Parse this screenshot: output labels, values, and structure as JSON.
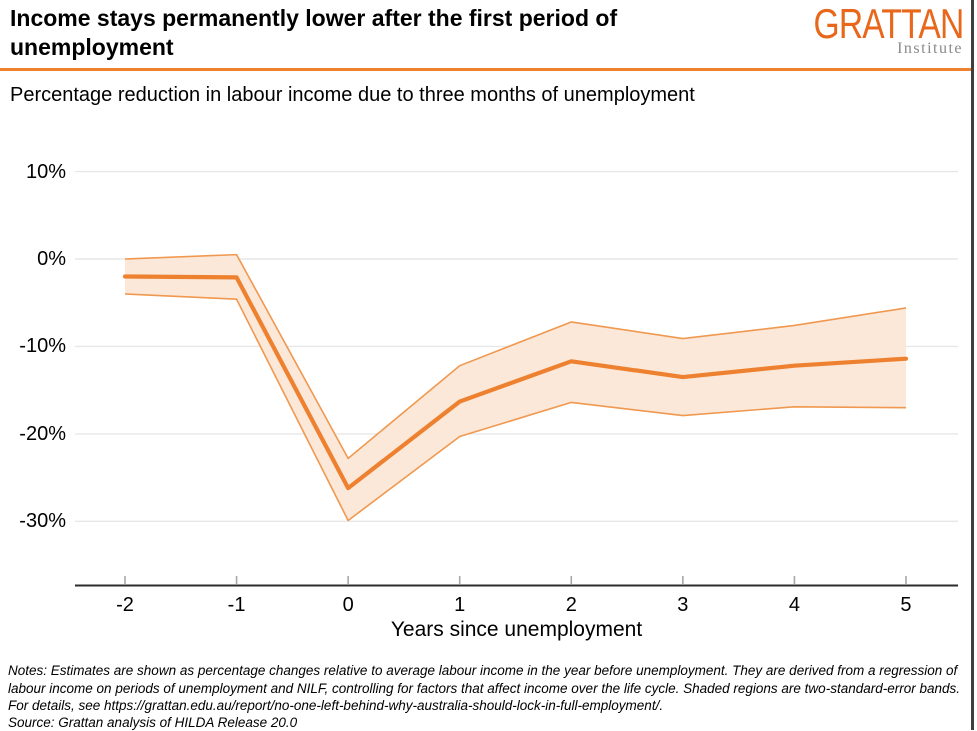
{
  "header": {
    "title": "Income stays permanently lower after the first period of unemployment",
    "logo_word": "GRATTAN",
    "logo_sub": "Institute"
  },
  "subtitle": "Percentage reduction in labour income due to three months of unemployment",
  "chart_data": {
    "type": "line",
    "title": "Income stays permanently lower after the first period of unemployment",
    "subtitle": "Percentage reduction in labour income due to three months of unemployment",
    "x": [
      -2,
      -1,
      0,
      1,
      2,
      3,
      4,
      5
    ],
    "x_tick_labels": [
      "-2",
      "-1",
      "0",
      "1",
      "2",
      "3",
      "4",
      "5"
    ],
    "series": [
      {
        "name": "central estimate",
        "values": [
          -2.0,
          -2.1,
          -26.2,
          -16.3,
          -11.7,
          -13.5,
          -12.2,
          -11.4
        ]
      },
      {
        "name": "upper two-standard-error band",
        "values": [
          0.0,
          0.5,
          -22.8,
          -12.2,
          -7.2,
          -9.1,
          -7.6,
          -5.6
        ]
      },
      {
        "name": "lower two-standard-error band",
        "values": [
          -4.0,
          -4.6,
          -29.9,
          -20.3,
          -16.4,
          -17.9,
          -16.9,
          -17.0
        ]
      }
    ],
    "xlabel": "Years since unemployment",
    "ylabel": "",
    "y_ticks": [
      10,
      0,
      -10,
      -20,
      -30
    ],
    "y_tick_labels": [
      "10%",
      "0%",
      "-10%",
      "-20%",
      "-30%"
    ],
    "ylim": [
      -33,
      13
    ],
    "grid": "horizontal gridlines only",
    "legend": "none",
    "band": "shaded region between upper and lower series (two-standard-error band)"
  },
  "colors": {
    "accent_orange": "#EE812F",
    "logo_orange": "#E8671B",
    "institute_gray": "#8A8A8A",
    "band_fill": "#FBE8D9",
    "band_edge": "#F0984F",
    "line": "#EE812F",
    "gridline": "#E7E7E7",
    "axis": "#2B2B2B",
    "tick": "#A8A8A8"
  },
  "notes": "Notes: Estimates are shown as percentage changes relative to average labour income in the year before unemployment. They are derived from a regression of labour income on periods of unemployment and NILF, controlling for factors that affect income over the life cycle. Shaded regions are two-standard-error bands. For details, see https://grattan.edu.au/report/no-one-left-behind-why-australia-should-lock-in-full-employment/.",
  "source": "Source: Grattan analysis of HILDA Release 20.0"
}
